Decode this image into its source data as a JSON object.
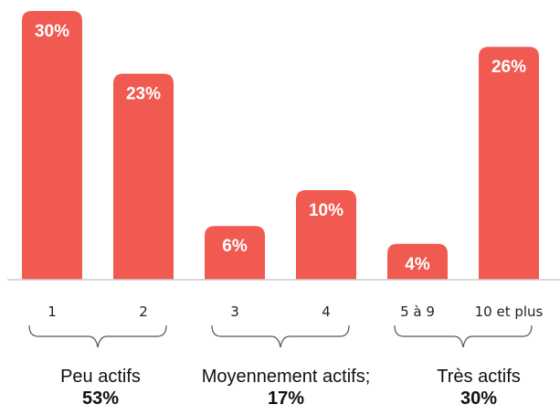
{
  "chart_data": {
    "type": "bar",
    "categories": [
      "1",
      "2",
      "3",
      "4",
      "5 à 9",
      "10 et plus"
    ],
    "values": [
      30,
      23,
      6,
      10,
      4,
      26
    ],
    "value_labels": [
      "30%",
      "23%",
      "6%",
      "10%",
      "4%",
      "26%"
    ],
    "ylim": [
      0,
      30
    ],
    "grid": false,
    "colors": {
      "bar": "#f05a50",
      "axis": "#cccccc",
      "bracket": "#555555"
    },
    "groups": [
      {
        "label": "Peu actifs",
        "share": "53%",
        "categories": [
          0,
          1
        ]
      },
      {
        "label": "Moyennement actifs; ",
        "share": "17%",
        "categories": [
          2,
          3
        ]
      },
      {
        "label": "Très actifs",
        "share": "30%",
        "categories": [
          4,
          5
        ]
      }
    ]
  }
}
